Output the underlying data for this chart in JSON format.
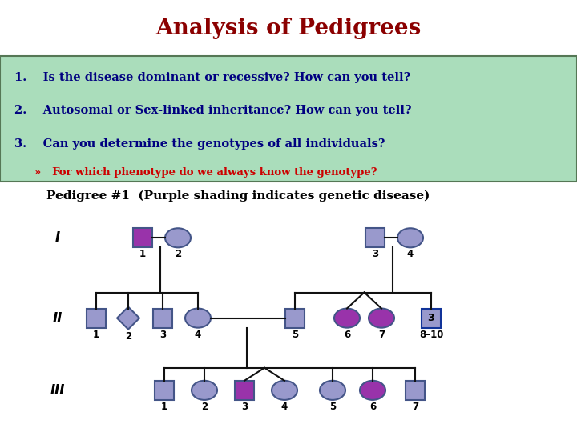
{
  "title": "Analysis of Pedigrees",
  "title_color": "#8B0000",
  "title_bg": "#FFFF99",
  "text_bg": "#AADDBB",
  "questions": [
    "1.    Is the disease dominant or recessive? How can you tell?",
    "2.    Autosomal or Sex-linked inheritance? How can you tell?",
    "3.    Can you determine the genotypes of all individuals?"
  ],
  "sub_question": "»   For which phenotype do we always know the genotype?",
  "pedigree_title": "Pedigree #1  (Purple shading indicates genetic disease)",
  "blue_fill": "#9999CC",
  "purple_fill": "#9933AA",
  "white_bg": "#FFFFFF",
  "q_text_color": "#000080",
  "text_color_red": "#CC0000",
  "border_color": "#445588",
  "line_color": "#111111"
}
